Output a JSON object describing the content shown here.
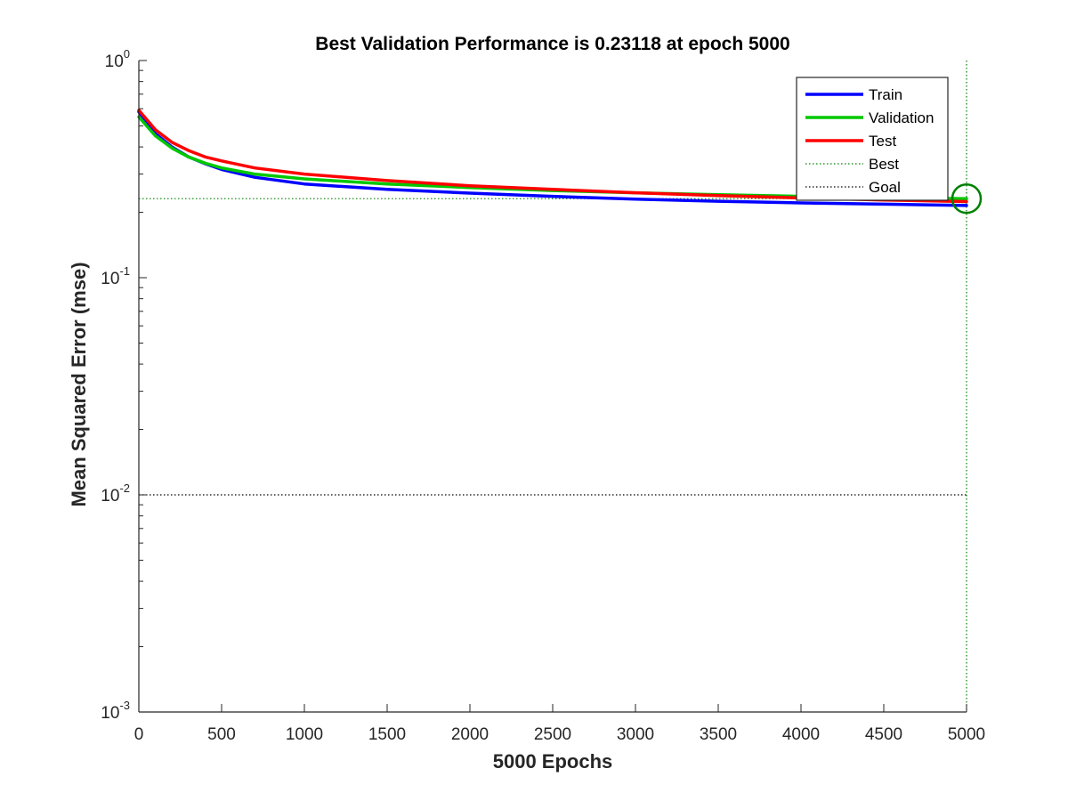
{
  "chart_data": {
    "type": "line",
    "title": "Best Validation Performance is 0.23118 at epoch 5000",
    "xlabel": "5000 Epochs",
    "ylabel": "Mean Squared Error  (mse)",
    "xlim": [
      0,
      5000
    ],
    "ylim": [
      0.001,
      1
    ],
    "yscale": "log",
    "grid": false,
    "legend_position": "top-right",
    "x_ticks": [
      "0",
      "500",
      "1000",
      "1500",
      "2000",
      "2500",
      "3000",
      "3500",
      "4000",
      "4500",
      "5000"
    ],
    "y_ticks": [
      {
        "base": "10",
        "exp": "-3",
        "value": 0.001
      },
      {
        "base": "10",
        "exp": "-2",
        "value": 0.01
      },
      {
        "base": "10",
        "exp": "-1",
        "value": 0.1
      },
      {
        "base": "10",
        "exp": "0",
        "value": 1
      }
    ],
    "series": [
      {
        "name": "Train",
        "color": "#0000ff",
        "style": "solid",
        "x": [
          0,
          100,
          200,
          300,
          400,
          500,
          700,
          1000,
          1500,
          2000,
          2500,
          3000,
          3500,
          4000,
          4500,
          5000
        ],
        "y": [
          0.58,
          0.46,
          0.4,
          0.36,
          0.335,
          0.315,
          0.29,
          0.27,
          0.255,
          0.245,
          0.237,
          0.23,
          0.225,
          0.221,
          0.218,
          0.215
        ]
      },
      {
        "name": "Validation",
        "color": "#00c800",
        "style": "solid",
        "x": [
          0,
          100,
          200,
          300,
          400,
          500,
          700,
          1000,
          1500,
          2000,
          2500,
          3000,
          3500,
          4000,
          4500,
          5000
        ],
        "y": [
          0.55,
          0.45,
          0.395,
          0.36,
          0.337,
          0.32,
          0.3,
          0.285,
          0.27,
          0.26,
          0.252,
          0.246,
          0.241,
          0.237,
          0.234,
          0.231
        ]
      },
      {
        "name": "Test",
        "color": "#ff0000",
        "style": "solid",
        "x": [
          0,
          100,
          200,
          300,
          400,
          500,
          700,
          1000,
          1500,
          2000,
          2500,
          3000,
          3500,
          4000,
          4500,
          5000
        ],
        "y": [
          0.59,
          0.48,
          0.42,
          0.385,
          0.36,
          0.345,
          0.32,
          0.3,
          0.28,
          0.265,
          0.255,
          0.246,
          0.239,
          0.233,
          0.228,
          0.224
        ]
      },
      {
        "name": "Best",
        "color": "#008000",
        "style": "dotted",
        "kind": "crosshair",
        "x_value": 5000,
        "y_value": 0.23118
      },
      {
        "name": "Goal",
        "color": "#000000",
        "style": "dotted",
        "kind": "hline",
        "y_value": 0.01
      }
    ],
    "best_point": {
      "x": 5000,
      "y": 0.23118,
      "color": "#008000"
    }
  }
}
